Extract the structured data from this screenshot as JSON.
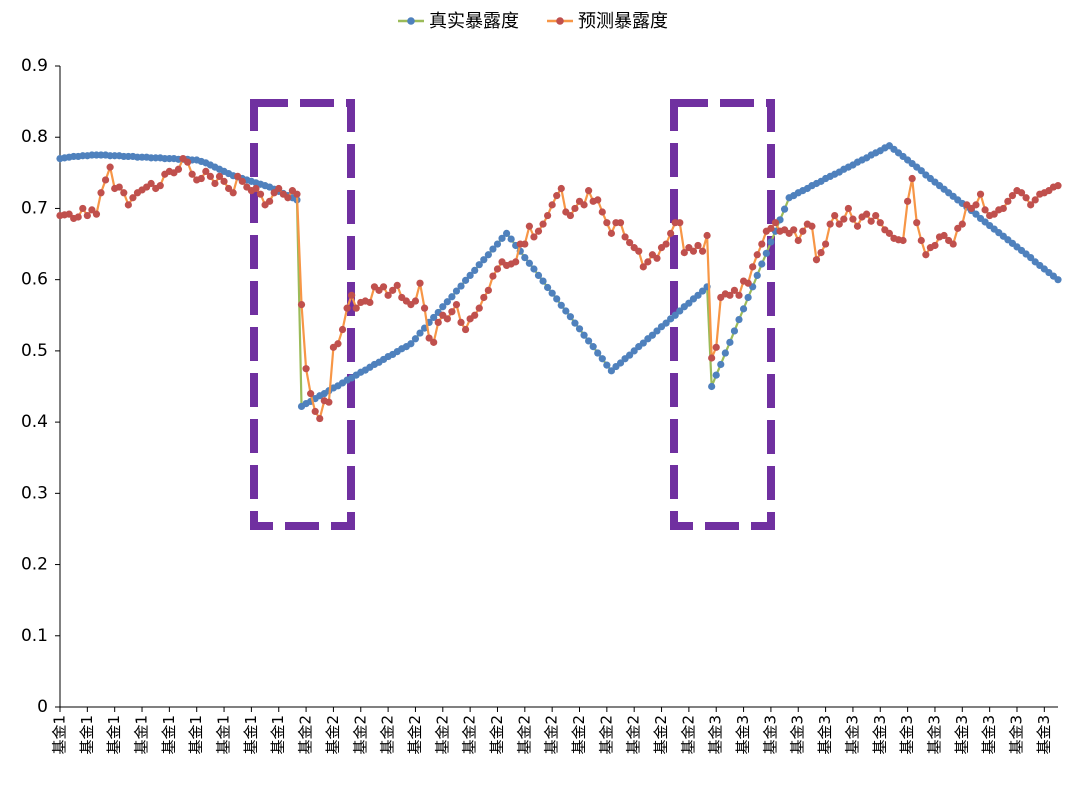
{
  "chart_data": {
    "type": "line",
    "categories": [
      "基金1",
      null,
      null,
      null,
      null,
      null,
      "基金1",
      null,
      null,
      null,
      null,
      null,
      "基金1",
      null,
      null,
      null,
      null,
      null,
      "基金1",
      null,
      null,
      null,
      null,
      null,
      "基金1",
      null,
      null,
      null,
      null,
      null,
      "基金1",
      null,
      null,
      null,
      null,
      null,
      "基金1",
      null,
      null,
      null,
      null,
      null,
      "基金1",
      null,
      null,
      null,
      null,
      null,
      "基金1",
      null,
      null,
      null,
      null,
      null,
      "基金2",
      null,
      null,
      null,
      null,
      null,
      "基金2",
      null,
      null,
      null,
      null,
      null,
      "基金2",
      null,
      null,
      null,
      null,
      null,
      "基金2",
      null,
      null,
      null,
      null,
      null,
      "基金2",
      null,
      null,
      null,
      null,
      null,
      "基金2",
      null,
      null,
      null,
      null,
      null,
      "基金2",
      null,
      null,
      null,
      null,
      null,
      "基金2",
      null,
      null,
      null,
      null,
      null,
      "基金2",
      null,
      null,
      null,
      null,
      null,
      "基金2",
      null,
      null,
      null,
      null,
      null,
      "基金2",
      null,
      null,
      null,
      null,
      null,
      "基金2",
      null,
      null,
      null,
      null,
      null,
      "基金2",
      null,
      null,
      null,
      null,
      null,
      "基金2",
      null,
      null,
      null,
      null,
      null,
      "基金2",
      null,
      null,
      null,
      null,
      null,
      "基金3",
      null,
      null,
      null,
      null,
      null,
      "基金3",
      null,
      null,
      null,
      null,
      null,
      "基金3",
      null,
      null,
      null,
      null,
      null,
      "基金3",
      null,
      null,
      null,
      null,
      null,
      "基金3",
      null,
      null,
      null,
      null,
      null,
      "基金3",
      null,
      null,
      null,
      null,
      null,
      "基金3",
      null,
      null,
      null,
      null,
      null,
      "基金3",
      null,
      null,
      null,
      null,
      null,
      "基金3",
      null,
      null,
      null,
      null,
      null,
      "基金3",
      null,
      null,
      null,
      null,
      null,
      "基金3",
      null,
      null,
      null,
      null,
      null,
      "基金3",
      null,
      null,
      null,
      null,
      null,
      "基金3",
      null,
      null,
      null
    ],
    "series": [
      {
        "name": "真实暴露度",
        "color": "#9bbb59",
        "marker_color": "#4f81bd",
        "values": [
          0.77,
          0.771,
          0.772,
          0.773,
          0.773,
          0.774,
          0.774,
          0.775,
          0.775,
          0.775,
          0.775,
          0.774,
          0.774,
          0.774,
          0.773,
          0.773,
          0.773,
          0.772,
          0.772,
          0.772,
          0.771,
          0.771,
          0.771,
          0.77,
          0.77,
          0.77,
          0.769,
          0.769,
          0.769,
          0.768,
          0.768,
          0.766,
          0.764,
          0.761,
          0.758,
          0.755,
          0.752,
          0.749,
          0.746,
          0.744,
          0.742,
          0.74,
          0.738,
          0.736,
          0.734,
          0.732,
          0.73,
          0.727,
          0.724,
          0.721,
          0.718,
          0.715,
          0.712,
          0.422,
          0.426,
          0.429,
          0.433,
          0.437,
          0.44,
          0.444,
          0.448,
          0.451,
          0.455,
          0.459,
          0.462,
          0.466,
          0.47,
          0.473,
          0.477,
          0.481,
          0.484,
          0.488,
          0.492,
          0.495,
          0.499,
          0.503,
          0.506,
          0.51,
          0.517,
          0.525,
          0.532,
          0.54,
          0.547,
          0.554,
          0.562,
          0.569,
          0.576,
          0.584,
          0.591,
          0.599,
          0.606,
          0.613,
          0.621,
          0.628,
          0.635,
          0.643,
          0.65,
          0.658,
          0.665,
          0.657,
          0.648,
          0.64,
          0.631,
          0.623,
          0.615,
          0.606,
          0.598,
          0.589,
          0.581,
          0.573,
          0.564,
          0.556,
          0.548,
          0.539,
          0.531,
          0.522,
          0.514,
          0.506,
          0.497,
          0.489,
          0.48,
          0.472,
          0.478,
          0.483,
          0.489,
          0.494,
          0.5,
          0.506,
          0.511,
          0.517,
          0.522,
          0.528,
          0.534,
          0.539,
          0.545,
          0.55,
          0.556,
          0.562,
          0.567,
          0.573,
          0.578,
          0.584,
          0.59,
          0.45,
          0.466,
          0.481,
          0.497,
          0.512,
          0.528,
          0.544,
          0.559,
          0.575,
          0.59,
          0.606,
          0.622,
          0.637,
          0.653,
          0.668,
          0.684,
          0.699,
          0.715,
          0.718,
          0.722,
          0.725,
          0.728,
          0.732,
          0.735,
          0.738,
          0.742,
          0.745,
          0.748,
          0.751,
          0.755,
          0.758,
          0.761,
          0.765,
          0.768,
          0.771,
          0.775,
          0.778,
          0.781,
          0.785,
          0.788,
          0.783,
          0.778,
          0.773,
          0.768,
          0.763,
          0.758,
          0.753,
          0.747,
          0.742,
          0.737,
          0.732,
          0.727,
          0.722,
          0.717,
          0.712,
          0.707,
          0.702,
          0.697,
          0.692,
          0.686,
          0.681,
          0.676,
          0.671,
          0.666,
          0.661,
          0.656,
          0.651,
          0.646,
          0.641,
          0.636,
          0.631,
          0.625,
          0.62,
          0.615,
          0.61,
          0.605,
          0.6
        ]
      },
      {
        "name": "预测暴露度",
        "color": "#f79646",
        "marker_color": "#c0504d",
        "values": [
          0.69,
          0.691,
          0.692,
          0.686,
          0.688,
          0.7,
          0.69,
          0.698,
          0.692,
          0.722,
          0.74,
          0.758,
          0.728,
          0.73,
          0.722,
          0.705,
          0.715,
          0.722,
          0.726,
          0.73,
          0.735,
          0.728,
          0.732,
          0.748,
          0.752,
          0.75,
          0.755,
          0.77,
          0.765,
          0.748,
          0.74,
          0.742,
          0.752,
          0.745,
          0.735,
          0.745,
          0.738,
          0.728,
          0.722,
          0.745,
          0.738,
          0.73,
          0.725,
          0.728,
          0.72,
          0.705,
          0.71,
          0.722,
          0.728,
          0.72,
          0.715,
          0.725,
          0.72,
          0.565,
          0.475,
          0.44,
          0.415,
          0.405,
          0.43,
          0.428,
          0.505,
          0.51,
          0.53,
          0.56,
          0.578,
          0.56,
          0.568,
          0.57,
          0.568,
          0.59,
          0.585,
          0.59,
          0.578,
          0.585,
          0.592,
          0.575,
          0.57,
          0.565,
          0.57,
          0.595,
          0.56,
          0.518,
          0.512,
          0.54,
          0.55,
          0.545,
          0.555,
          0.565,
          0.54,
          0.53,
          0.545,
          0.55,
          0.56,
          0.575,
          0.585,
          0.605,
          0.615,
          0.625,
          0.62,
          0.622,
          0.625,
          0.65,
          0.65,
          0.675,
          0.66,
          0.668,
          0.678,
          0.69,
          0.705,
          0.718,
          0.728,
          0.695,
          0.69,
          0.7,
          0.71,
          0.705,
          0.725,
          0.71,
          0.712,
          0.695,
          0.68,
          0.665,
          0.68,
          0.68,
          0.66,
          0.652,
          0.645,
          0.64,
          0.618,
          0.625,
          0.635,
          0.63,
          0.645,
          0.65,
          0.665,
          0.68,
          0.68,
          0.638,
          0.645,
          0.64,
          0.648,
          0.64,
          0.662,
          0.49,
          0.505,
          0.575,
          0.58,
          0.578,
          0.585,
          0.578,
          0.598,
          0.595,
          0.618,
          0.635,
          0.65,
          0.668,
          0.672,
          0.68,
          0.668,
          0.67,
          0.665,
          0.67,
          0.655,
          0.668,
          0.678,
          0.675,
          0.628,
          0.638,
          0.65,
          0.678,
          0.69,
          0.678,
          0.685,
          0.7,
          0.685,
          0.675,
          0.688,
          0.692,
          0.682,
          0.69,
          0.68,
          0.67,
          0.665,
          0.658,
          0.656,
          0.655,
          0.71,
          0.742,
          0.68,
          0.655,
          0.635,
          0.645,
          0.648,
          0.66,
          0.662,
          0.655,
          0.65,
          0.672,
          0.678,
          0.705,
          0.7,
          0.705,
          0.72,
          0.698,
          0.69,
          0.692,
          0.698,
          0.7,
          0.71,
          0.718,
          0.725,
          0.722,
          0.715,
          0.705,
          0.712,
          0.72,
          0.722,
          0.725,
          0.73,
          0.732
        ]
      }
    ],
    "ylim": [
      0,
      0.9
    ],
    "yticks": [
      0,
      0.1,
      0.2,
      0.3,
      0.4,
      0.5,
      0.6,
      0.7,
      0.8,
      0.9
    ],
    "grid": false,
    "legend": "top"
  }
}
